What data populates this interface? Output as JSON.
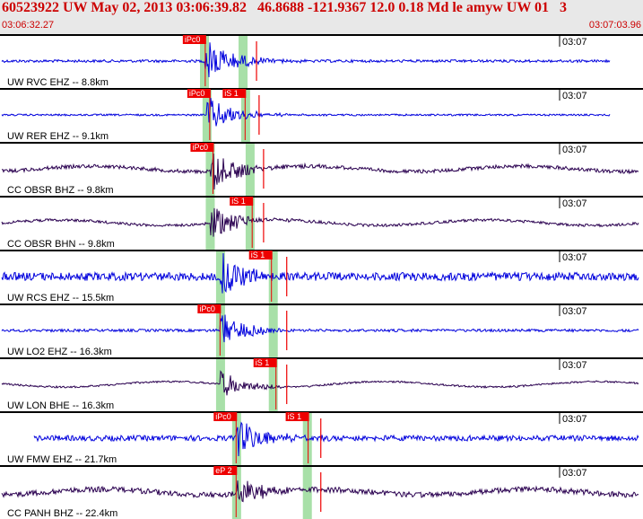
{
  "header": {
    "title": "60523922 UW May 02, 2013 03:06:39.82   46.8688 -121.9367 12.0 0.18 Md le amyw UW 01   3",
    "start_time": "03:06:32.27",
    "end_time": "03:07:03.96"
  },
  "colors": {
    "header_bg": "#e8e8e8",
    "title": "#cc0000",
    "trace_blue": "#0000dd",
    "trace_purple": "#2a0050",
    "pick_red": "#ee0000",
    "pick_band": "#a8e0a8",
    "separator": "#000000"
  },
  "traces": [
    {
      "label": "UW RVC EHZ -- 8.8km",
      "time_tick": "03:07",
      "color": "blue",
      "amp": 3,
      "burst": 28,
      "picks": [
        {
          "text": "iPc0",
          "pos": 0.315
        }
      ],
      "shade": [
        0.318,
        0.378
      ]
    },
    {
      "label": "UW RER EHZ -- 9.1km",
      "time_tick": "03:07",
      "color": "blue",
      "amp": 2,
      "burst": 22,
      "picks": [
        {
          "text": "iPc0",
          "pos": 0.322
        },
        {
          "text": "iS 1",
          "pos": 0.377
        }
      ],
      "shade": [
        0.322,
        0.382
      ]
    },
    {
      "label": "CC OBSR BHZ -- 9.8km",
      "time_tick": "03:07",
      "color": "purple",
      "amp": 4,
      "burst": 26,
      "picks": [
        {
          "text": "iPc0",
          "pos": 0.327
        }
      ],
      "shade": [
        0.327,
        0.389
      ]
    },
    {
      "label": "CC OBSR BHN -- 9.8km",
      "time_tick": "03:07",
      "color": "purple",
      "amp": 3,
      "burst": 22,
      "picks": [
        {
          "text": "iS 1",
          "pos": 0.388
        }
      ],
      "shade": [
        0.327,
        0.389
      ]
    },
    {
      "label": "UW RCS EHZ -- 15.5km",
      "time_tick": "03:07",
      "color": "blue",
      "amp": 9,
      "burst": 26,
      "picks": [
        {
          "text": "iS 1",
          "pos": 0.418
        }
      ],
      "shade": [
        0.343,
        0.425
      ]
    },
    {
      "label": "UW LO2 EHZ -- 16.3km",
      "time_tick": "03:07",
      "color": "blue",
      "amp": 3,
      "burst": 20,
      "picks": [
        {
          "text": "iPc0",
          "pos": 0.338
        }
      ],
      "shade": [
        0.343,
        0.425
      ]
    },
    {
      "label": "UW LON BHE -- 16.3km",
      "time_tick": "03:07",
      "color": "purple",
      "amp": 2,
      "burst": 16,
      "picks": [
        {
          "text": "iS 1",
          "pos": 0.425
        }
      ],
      "shade": [
        0.343,
        0.425
      ]
    },
    {
      "label": "UW FMW EHZ -- 21.7km",
      "time_tick": "03:07",
      "color": "blue",
      "amp": 6,
      "burst": 22,
      "picks": [
        {
          "text": "iPc0",
          "pos": 0.363
        },
        {
          "text": "iS 1",
          "pos": 0.475
        }
      ],
      "shade": [
        0.368,
        0.478
      ]
    },
    {
      "label": "CC PANH BHZ -- 22.4km",
      "time_tick": "03:07",
      "color": "purple",
      "amp": 6,
      "burst": 18,
      "picks": [
        {
          "text": "eP 2",
          "pos": 0.363
        }
      ],
      "shade": [
        0.368,
        0.478
      ]
    }
  ]
}
